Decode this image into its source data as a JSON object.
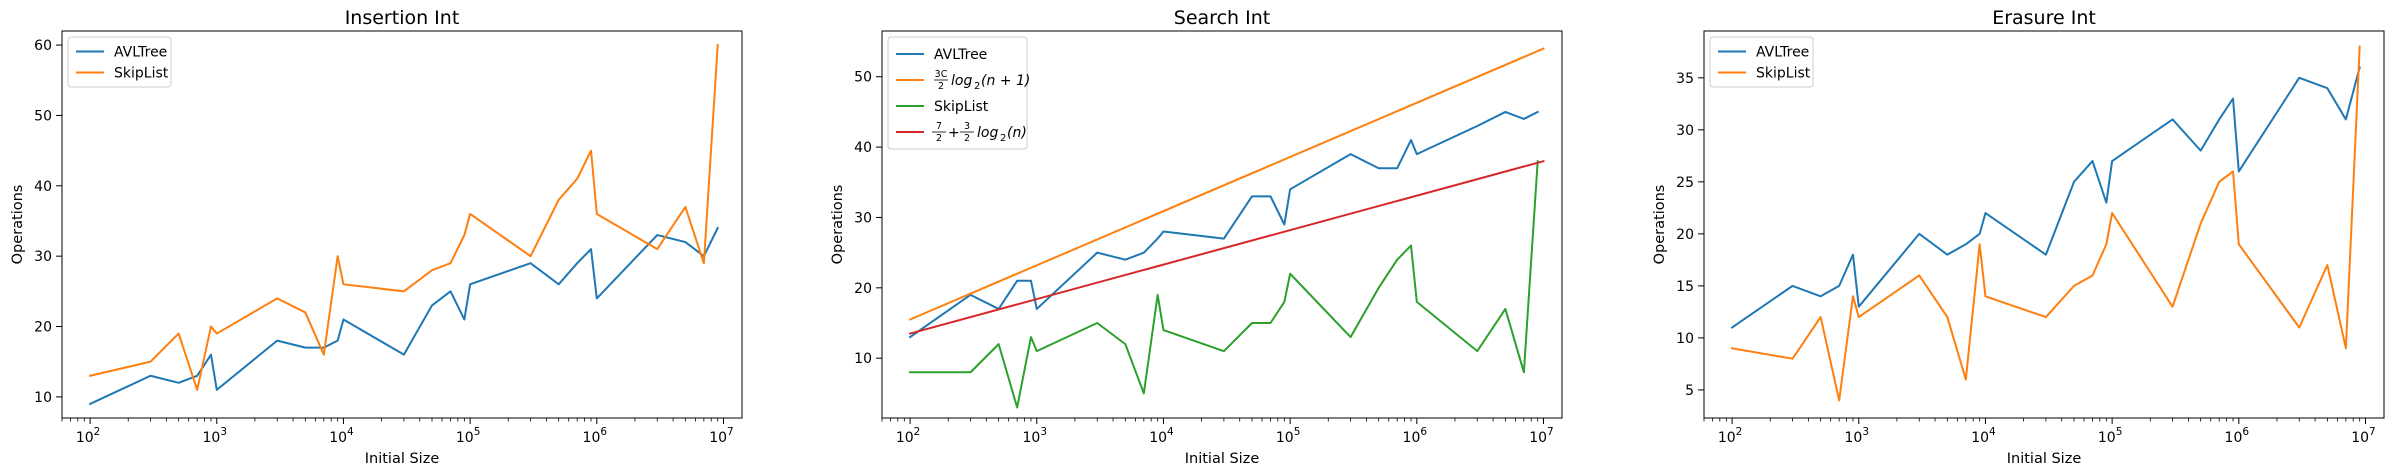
{
  "colors": {
    "blue": "#1f77b4",
    "orange": "#ff7f0e",
    "green": "#2ca02c",
    "red": "#d62728"
  },
  "chart_data": [
    {
      "type": "line",
      "title": "Insertion Int",
      "xlabel": "Initial Size",
      "ylabel": "Operations",
      "xscale": "log",
      "xlim": [
        60,
        14000000
      ],
      "ylim": [
        7,
        62
      ],
      "x_ticks": [
        {
          "value": 100,
          "base": "10",
          "exp": "2"
        },
        {
          "value": 1000,
          "base": "10",
          "exp": "3"
        },
        {
          "value": 10000,
          "base": "10",
          "exp": "4"
        },
        {
          "value": 100000,
          "base": "10",
          "exp": "5"
        },
        {
          "value": 1000000,
          "base": "10",
          "exp": "6"
        },
        {
          "value": 10000000,
          "base": "10",
          "exp": "7"
        }
      ],
      "y_ticks": [
        10,
        20,
        30,
        40,
        50,
        60
      ],
      "legend": "upper left",
      "series": [
        {
          "name": "AVLTree",
          "color": "#1f77b4",
          "x": [
            100,
            300,
            500,
            700,
            900,
            1000,
            3000,
            5000,
            7000,
            9000,
            10000,
            30000,
            50000,
            70000,
            90000,
            100000,
            300000,
            500000,
            700000,
            900000,
            1000000,
            3000000,
            5000000,
            7000000,
            9000000
          ],
          "y": [
            9,
            13,
            12,
            13,
            16,
            11,
            18,
            17,
            17,
            18,
            21,
            16,
            23,
            25,
            21,
            26,
            29,
            26,
            29,
            31,
            24,
            33,
            32,
            30,
            34
          ]
        },
        {
          "name": "SkipList",
          "color": "#ff7f0e",
          "x": [
            100,
            300,
            500,
            700,
            900,
            1000,
            3000,
            5000,
            7000,
            9000,
            10000,
            30000,
            50000,
            70000,
            90000,
            100000,
            300000,
            500000,
            700000,
            900000,
            1000000,
            3000000,
            5000000,
            7000000,
            9000000
          ],
          "y": [
            13,
            15,
            19,
            11,
            20,
            19,
            24,
            22,
            16,
            30,
            26,
            25,
            28,
            29,
            33,
            36,
            30,
            38,
            41,
            45,
            36,
            31,
            37,
            29,
            60
          ]
        }
      ]
    },
    {
      "type": "line",
      "title": "Search Int",
      "xlabel": "Initial Size",
      "ylabel": "Operations",
      "xscale": "log",
      "xlim": [
        60,
        14000000
      ],
      "ylim": [
        1.5,
        56.5
      ],
      "x_ticks": [
        {
          "value": 100,
          "base": "10",
          "exp": "2"
        },
        {
          "value": 1000,
          "base": "10",
          "exp": "3"
        },
        {
          "value": 10000,
          "base": "10",
          "exp": "4"
        },
        {
          "value": 100000,
          "base": "10",
          "exp": "5"
        },
        {
          "value": 1000000,
          "base": "10",
          "exp": "6"
        },
        {
          "value": 10000000,
          "base": "10",
          "exp": "7"
        }
      ],
      "y_ticks": [
        10,
        20,
        30,
        40,
        50
      ],
      "legend": "upper left",
      "series": [
        {
          "name": "AVLTree",
          "color": "#1f77b4",
          "x": [
            100,
            300,
            500,
            700,
            900,
            1000,
            3000,
            5000,
            7000,
            9000,
            10000,
            30000,
            50000,
            70000,
            90000,
            100000,
            300000,
            500000,
            700000,
            900000,
            1000000,
            3000000,
            5000000,
            7000000,
            9000000
          ],
          "y": [
            13,
            19,
            17,
            21,
            21,
            17,
            25,
            24,
            25,
            27,
            28,
            27,
            33,
            33,
            29,
            34,
            39,
            37,
            37,
            41,
            39,
            43,
            45,
            44,
            45
          ]
        },
        {
          "name": "3C/2 log2(n+1)",
          "label_parts": [
            "3C",
            "2",
            "log",
            "2",
            "(n + 1)"
          ],
          "color": "#ff7f0e",
          "x": [
            100,
            10000000
          ],
          "y": [
            15.5,
            54
          ]
        },
        {
          "name": "SkipList",
          "color": "#2ca02c",
          "x": [
            100,
            300,
            500,
            700,
            900,
            1000,
            3000,
            5000,
            7000,
            9000,
            10000,
            30000,
            50000,
            70000,
            90000,
            100000,
            300000,
            500000,
            700000,
            900000,
            1000000,
            3000000,
            5000000,
            7000000,
            9000000
          ],
          "y": [
            8,
            8,
            12,
            3,
            13,
            11,
            15,
            12,
            5,
            19,
            14,
            11,
            15,
            15,
            18,
            22,
            13,
            20,
            24,
            26,
            18,
            11,
            17,
            8,
            38
          ]
        },
        {
          "name": "7/2 + 3/2 log2(n)",
          "label_parts": [
            "7",
            "2",
            "+",
            "3",
            "2",
            "log",
            "2",
            "(n)"
          ],
          "color": "#d62728",
          "x": [
            100,
            10000000
          ],
          "y": [
            13.5,
            38
          ]
        }
      ]
    },
    {
      "type": "line",
      "title": "Erasure Int",
      "xlabel": "Initial Size",
      "ylabel": "Operations",
      "xscale": "log",
      "xlim": [
        60,
        14000000
      ],
      "ylim": [
        2.3,
        39.5
      ],
      "x_ticks": [
        {
          "value": 100,
          "base": "10",
          "exp": "2"
        },
        {
          "value": 1000,
          "base": "10",
          "exp": "3"
        },
        {
          "value": 10000,
          "base": "10",
          "exp": "4"
        },
        {
          "value": 100000,
          "base": "10",
          "exp": "5"
        },
        {
          "value": 1000000,
          "base": "10",
          "exp": "6"
        },
        {
          "value": 10000000,
          "base": "10",
          "exp": "7"
        }
      ],
      "y_ticks": [
        5,
        10,
        15,
        20,
        25,
        30,
        35
      ],
      "legend": "upper left",
      "series": [
        {
          "name": "AVLTree",
          "color": "#1f77b4",
          "x": [
            100,
            300,
            500,
            700,
            900,
            1000,
            3000,
            5000,
            7000,
            9000,
            10000,
            30000,
            50000,
            70000,
            90000,
            100000,
            300000,
            500000,
            700000,
            900000,
            1000000,
            3000000,
            5000000,
            7000000,
            9000000
          ],
          "y": [
            11,
            15,
            14,
            15,
            18,
            13,
            20,
            18,
            19,
            20,
            22,
            18,
            25,
            27,
            23,
            27,
            31,
            28,
            31,
            33,
            26,
            35,
            34,
            31,
            36
          ]
        },
        {
          "name": "SkipList",
          "color": "#ff7f0e",
          "x": [
            100,
            300,
            500,
            700,
            900,
            1000,
            3000,
            5000,
            7000,
            9000,
            10000,
            30000,
            50000,
            70000,
            90000,
            100000,
            300000,
            500000,
            700000,
            900000,
            1000000,
            3000000,
            5000000,
            7000000,
            9000000
          ],
          "y": [
            9,
            8,
            12,
            4,
            14,
            12,
            16,
            12,
            6,
            19,
            14,
            12,
            15,
            16,
            19,
            22,
            13,
            21,
            25,
            26,
            19,
            11,
            17,
            9,
            38
          ]
        }
      ]
    }
  ]
}
